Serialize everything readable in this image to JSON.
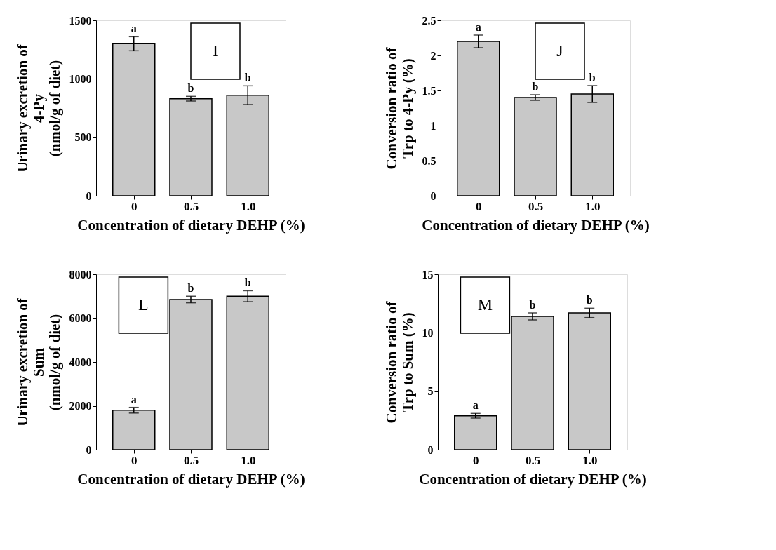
{
  "chart_data": [
    {
      "type": "bar",
      "title": "I",
      "xlabel": "Concentration of dietary DEHP (%)",
      "ylabel": "Urinary excretion of\n4-Py\n(nmol/g of diet)",
      "categories": [
        "0",
        "0.5",
        "1.0"
      ],
      "values": [
        1300,
        830,
        860
      ],
      "errors": [
        60,
        20,
        80
      ],
      "color": "#c8c8c8",
      "ylim": [
        0,
        1500
      ],
      "yticks": [
        0,
        500,
        1000,
        1500
      ],
      "grid": false,
      "annotations": [
        {
          "text": "a",
          "x": "0",
          "y": 1360
        },
        {
          "text": "b",
          "x": "0.5",
          "y": 850
        },
        {
          "text": "b",
          "x": "1.0",
          "y": 940
        }
      ]
    },
    {
      "type": "bar",
      "title": "J",
      "xlabel": "Concentration of dietary DEHP (%)",
      "ylabel": "Conversion ratio of\nTrp to 4-Py (%)",
      "categories": [
        "0",
        "0.5",
        "1.0"
      ],
      "values": [
        2.2,
        1.4,
        1.45
      ],
      "errors": [
        0.09,
        0.04,
        0.12
      ],
      "color": "#c8c8c8",
      "ylim": [
        0,
        2.5
      ],
      "yticks": [
        0,
        0.5,
        1,
        1.5,
        2,
        2.5
      ],
      "grid": false,
      "annotations": [
        {
          "text": "a",
          "x": "0",
          "y": 2.29
        },
        {
          "text": "b",
          "x": "0.5",
          "y": 1.44
        },
        {
          "text": "b",
          "x": "1.0",
          "y": 1.57
        }
      ]
    },
    {
      "type": "bar",
      "title": "L",
      "xlabel": "Concentration of dietary DEHP (%)",
      "ylabel": "Urinary excretion of\nSum\n(nmol/g of diet)",
      "categories": [
        "0",
        "0.5",
        "1.0"
      ],
      "values": [
        1800,
        6850,
        7000
      ],
      "errors": [
        130,
        150,
        250
      ],
      "color": "#c8c8c8",
      "ylim": [
        0,
        8000
      ],
      "yticks": [
        0,
        2000,
        4000,
        6000,
        8000
      ],
      "grid": false,
      "annotations": [
        {
          "text": "a",
          "x": "0",
          "y": 1930
        },
        {
          "text": "b",
          "x": "0.5",
          "y": 7000
        },
        {
          "text": "b",
          "x": "1.0",
          "y": 7250
        }
      ]
    },
    {
      "type": "bar",
      "title": "M",
      "xlabel": "Concentration of dietary DEHP (%)",
      "ylabel": "Conversion ratio of\nTrp to Sum (%)",
      "categories": [
        "0",
        "0.5",
        "1.0"
      ],
      "values": [
        2.9,
        11.4,
        11.7
      ],
      "errors": [
        0.2,
        0.3,
        0.4
      ],
      "color": "#c8c8c8",
      "ylim": [
        0,
        15
      ],
      "yticks": [
        0,
        5,
        10,
        15
      ],
      "grid": false,
      "annotations": [
        {
          "text": "a",
          "x": "0",
          "y": 3.1
        },
        {
          "text": "b",
          "x": "0.5",
          "y": 11.7
        },
        {
          "text": "b",
          "x": "1.0",
          "y": 12.1
        }
      ]
    }
  ]
}
